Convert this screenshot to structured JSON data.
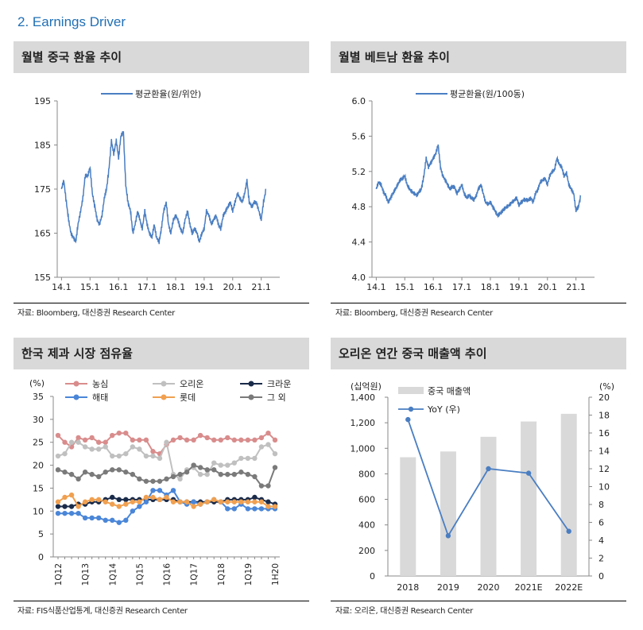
{
  "section_title": "2. Earnings Driver",
  "charts": {
    "cny": {
      "title": "월별 중국 환율 추이",
      "source": "자료: Bloomberg, 대신증권 Research Center"
    },
    "vnd": {
      "title": "월별 베트남 환율 추이",
      "source": "자료: Bloomberg, 대신증권 Research Center"
    },
    "share": {
      "title": "한국 제과 시장 점유율",
      "source": "자료: FIS식품산업통계, 대신증권 Research Center"
    },
    "sales": {
      "title": "오리온 연간 중국 매출액 추이",
      "source": "자료: 오리온, 대신증권 Research Center"
    }
  },
  "chart_data": [
    {
      "type": "line",
      "title": "월별 중국 환율 추이",
      "series": [
        {
          "name": "평균환율(원/위안)",
          "color": "#4a7ec2",
          "x": [
            2014.0,
            2014.08,
            2014.17,
            2014.25,
            2014.33,
            2014.42,
            2014.5,
            2014.58,
            2014.67,
            2014.75,
            2014.83,
            2014.92,
            2015.0,
            2015.08,
            2015.17,
            2015.25,
            2015.33,
            2015.42,
            2015.5,
            2015.58,
            2015.67,
            2015.75,
            2015.83,
            2015.92,
            2016.0,
            2016.08,
            2016.17,
            2016.25,
            2016.33,
            2016.42,
            2016.5,
            2016.58,
            2016.67,
            2016.75,
            2016.83,
            2016.92,
            2017.0,
            2017.08,
            2017.17,
            2017.25,
            2017.33,
            2017.42,
            2017.5,
            2017.58,
            2017.67,
            2017.75,
            2017.83,
            2017.92,
            2018.0,
            2018.08,
            2018.17,
            2018.25,
            2018.33,
            2018.42,
            2018.5,
            2018.58,
            2018.67,
            2018.75,
            2018.83,
            2018.92,
            2019.0,
            2019.08,
            2019.17,
            2019.25,
            2019.33,
            2019.42,
            2019.5,
            2019.58,
            2019.67,
            2019.75,
            2019.83,
            2019.92,
            2020.0,
            2020.08,
            2020.17,
            2020.25,
            2020.33,
            2020.42,
            2020.5,
            2020.58,
            2020.67,
            2020.75,
            2020.83,
            2020.92,
            2021.0,
            2021.08,
            2021.17
          ],
          "y": [
            175,
            177,
            172,
            168,
            165,
            164,
            163,
            167,
            170,
            173,
            178,
            178,
            180,
            174,
            171,
            168,
            167,
            169,
            173,
            175,
            180,
            186,
            183,
            186,
            182,
            187,
            188,
            176,
            172,
            170,
            165,
            167,
            170,
            168,
            166,
            170,
            167,
            165,
            164,
            167,
            164,
            163,
            166,
            170,
            172,
            167,
            165,
            168,
            169,
            168,
            166,
            165,
            168,
            170,
            167,
            165,
            166,
            165,
            163,
            165,
            166,
            170,
            169,
            167,
            168,
            169,
            167,
            166,
            169,
            170,
            171,
            172,
            170,
            172,
            174,
            173,
            172,
            174,
            177,
            172,
            171,
            172,
            172,
            170,
            168,
            172,
            175
          ]
        }
      ],
      "ylim": [
        155,
        195
      ],
      "yticks": [
        155,
        165,
        175,
        185,
        195
      ],
      "xtick_labels": [
        "14.1",
        "15.1",
        "16.1",
        "17.1",
        "18.1",
        "19.1",
        "20.1",
        "21.1"
      ],
      "xtick_values": [
        2014,
        2015,
        2016,
        2017,
        2018,
        2019,
        2020,
        2021
      ]
    },
    {
      "type": "line",
      "title": "월별 베트남 환율 추이",
      "series": [
        {
          "name": "평균환율(원/100동)",
          "color": "#4a7ec2",
          "x": [
            2014.0,
            2014.08,
            2014.17,
            2014.25,
            2014.33,
            2014.42,
            2014.5,
            2014.58,
            2014.67,
            2014.75,
            2014.83,
            2014.92,
            2015.0,
            2015.08,
            2015.17,
            2015.25,
            2015.33,
            2015.42,
            2015.5,
            2015.58,
            2015.67,
            2015.75,
            2015.83,
            2015.92,
            2016.0,
            2016.08,
            2016.17,
            2016.25,
            2016.33,
            2016.42,
            2016.5,
            2016.58,
            2016.67,
            2016.75,
            2016.83,
            2016.92,
            2017.0,
            2017.08,
            2017.17,
            2017.25,
            2017.33,
            2017.42,
            2017.5,
            2017.58,
            2017.67,
            2017.75,
            2017.83,
            2017.92,
            2018.0,
            2018.08,
            2018.17,
            2018.25,
            2018.33,
            2018.42,
            2018.5,
            2018.58,
            2018.67,
            2018.75,
            2018.83,
            2018.92,
            2019.0,
            2019.08,
            2019.17,
            2019.25,
            2019.33,
            2019.42,
            2019.5,
            2019.58,
            2019.67,
            2019.75,
            2019.83,
            2019.92,
            2020.0,
            2020.08,
            2020.17,
            2020.25,
            2020.33,
            2020.42,
            2020.5,
            2020.58,
            2020.67,
            2020.75,
            2020.83,
            2020.92,
            2021.0,
            2021.08,
            2021.17
          ],
          "y": [
            5.0,
            5.08,
            5.05,
            4.97,
            4.93,
            4.85,
            4.9,
            4.95,
            5.0,
            5.05,
            5.1,
            5.12,
            5.15,
            5.05,
            5.0,
            4.97,
            4.95,
            4.93,
            4.97,
            5.0,
            5.15,
            5.35,
            5.25,
            5.3,
            5.35,
            5.4,
            5.5,
            5.25,
            5.15,
            5.1,
            5.05,
            5.0,
            5.03,
            5.02,
            4.95,
            5.0,
            5.05,
            4.95,
            4.9,
            4.93,
            4.9,
            4.88,
            4.92,
            5.0,
            5.05,
            4.95,
            4.85,
            4.83,
            4.85,
            4.8,
            4.75,
            4.7,
            4.72,
            4.75,
            4.78,
            4.8,
            4.82,
            4.85,
            4.87,
            4.9,
            4.82,
            4.85,
            4.88,
            4.88,
            4.87,
            4.9,
            4.85,
            4.95,
            5.0,
            5.08,
            5.1,
            5.12,
            5.05,
            5.15,
            5.2,
            5.22,
            5.35,
            5.28,
            5.25,
            5.15,
            5.18,
            5.05,
            5.0,
            4.95,
            4.75,
            4.8,
            4.92
          ]
        }
      ],
      "ylim": [
        4.0,
        6.0
      ],
      "yticks": [
        "4.0",
        "4.4",
        "4.8",
        "5.2",
        "5.6",
        "6.0"
      ],
      "xtick_labels": [
        "14.1",
        "15.1",
        "16.1",
        "17.1",
        "18.1",
        "19.1",
        "20.1",
        "21.1"
      ],
      "xtick_values": [
        2014,
        2015,
        2016,
        2017,
        2018,
        2019,
        2020,
        2021
      ]
    },
    {
      "type": "line",
      "title": "한국 제과 시장 점유율",
      "unit_label": "(%)",
      "ylim": [
        0,
        35
      ],
      "yticks": [
        0,
        5,
        10,
        15,
        20,
        25,
        30,
        35
      ],
      "categories": [
        "1Q12",
        "2Q12",
        "3Q12",
        "4Q12",
        "1Q13",
        "2Q13",
        "3Q13",
        "4Q13",
        "1Q14",
        "2Q14",
        "3Q14",
        "4Q14",
        "1Q15",
        "2Q15",
        "3Q15",
        "4Q15",
        "1Q16",
        "2Q16",
        "3Q16",
        "4Q16",
        "1Q17",
        "2Q17",
        "3Q17",
        "4Q17",
        "1Q18",
        "2Q18",
        "3Q18",
        "4Q18",
        "1Q19",
        "2Q19",
        "3Q19",
        "4Q19",
        "1H20"
      ],
      "xtick_labels": [
        "1Q12",
        "1Q13",
        "1Q14",
        "1Q15",
        "1Q16",
        "1Q17",
        "1Q18",
        "1Q19",
        "1H20"
      ],
      "xtick_index": [
        0,
        4,
        8,
        12,
        16,
        20,
        24,
        28,
        32
      ],
      "series": [
        {
          "name": "농심",
          "color": "#d98c8c",
          "values": [
            26.5,
            25,
            24,
            26,
            25.5,
            26,
            25,
            25,
            26.5,
            27,
            27,
            25.5,
            25.5,
            25.5,
            23,
            22.5,
            24.5,
            25.5,
            26,
            25.5,
            25.5,
            26.5,
            26,
            25.5,
            25.5,
            26,
            25.5,
            25.5,
            25.5,
            25.5,
            26,
            27,
            25.5
          ]
        },
        {
          "name": "오리온",
          "color": "#c0c0c0",
          "values": [
            22,
            22.5,
            25,
            25,
            24,
            23.5,
            23.5,
            24,
            22,
            22,
            22.5,
            24,
            23.5,
            22,
            22,
            21.5,
            25,
            18,
            17,
            19,
            19.5,
            18,
            18,
            20.5,
            20,
            20,
            20.5,
            21.5,
            21.5,
            21.5,
            24,
            24.5,
            22.5
          ]
        },
        {
          "name": "크라운",
          "color": "#1a2b4a",
          "values": [
            11,
            11,
            11,
            11.5,
            11.5,
            12,
            12,
            12.5,
            13,
            12.5,
            12.5,
            12.5,
            12.5,
            12.5,
            12.5,
            12.5,
            12.5,
            12.5,
            12,
            12,
            12,
            12,
            12,
            12,
            12,
            12.5,
            12.5,
            12.5,
            12.5,
            13,
            12.5,
            12,
            11.5
          ]
        },
        {
          "name": "해태",
          "color": "#4a86d8",
          "values": [
            9.5,
            9.5,
            9.5,
            9.5,
            8.5,
            8.5,
            8.5,
            8,
            8,
            7.5,
            8,
            10,
            11,
            12,
            14.5,
            14.5,
            13.5,
            14.5,
            12,
            11.5,
            12,
            11.5,
            12,
            12.5,
            12,
            10.5,
            10.5,
            11.5,
            10.5,
            10.5,
            10.5,
            10.5,
            10.5
          ]
        },
        {
          "name": "롯데",
          "color": "#f0a050",
          "values": [
            12,
            13,
            13.5,
            11,
            12,
            12.5,
            12.5,
            12,
            11.5,
            11,
            11.5,
            12,
            12,
            13,
            13,
            12.5,
            13,
            12,
            12,
            12,
            11,
            11.5,
            12,
            12.5,
            12,
            12,
            12,
            12,
            12,
            12,
            12,
            11,
            11
          ]
        },
        {
          "name": "그 외",
          "color": "#7a7a7a",
          "values": [
            19,
            18.5,
            18,
            17,
            18.5,
            18,
            17.5,
            18.5,
            19,
            19,
            18.5,
            18,
            17,
            16.5,
            16.5,
            16.5,
            17,
            17.5,
            18,
            18.5,
            20,
            19.5,
            19,
            19,
            18,
            18,
            18,
            18.5,
            18,
            17.5,
            15.5,
            15.5,
            19.5
          ]
        }
      ]
    },
    {
      "type": "bar",
      "title": "오리온 연간 중국 매출액 추이",
      "left_unit": "(십억원)",
      "right_unit": "(%)",
      "categories": [
        "2018",
        "2019",
        "2020",
        "2021E",
        "2022E"
      ],
      "ylim": [
        0,
        1400
      ],
      "yticks": [
        "0",
        "200",
        "400",
        "600",
        "800",
        "1,000",
        "1,200",
        "1,400"
      ],
      "y2lim": [
        0,
        20
      ],
      "y2ticks": [
        0,
        2,
        4,
        6,
        8,
        10,
        12,
        14,
        16,
        18,
        20
      ],
      "series": [
        {
          "name": "중국 매출액",
          "color": "#d9d9d9",
          "values": [
            930,
            975,
            1090,
            1210,
            1270
          ]
        },
        {
          "name": "YoY (우)",
          "color": "#4a7ec2",
          "values": [
            17.5,
            4.5,
            12.0,
            11.5,
            5.0
          ],
          "axis": "right"
        }
      ]
    }
  ]
}
